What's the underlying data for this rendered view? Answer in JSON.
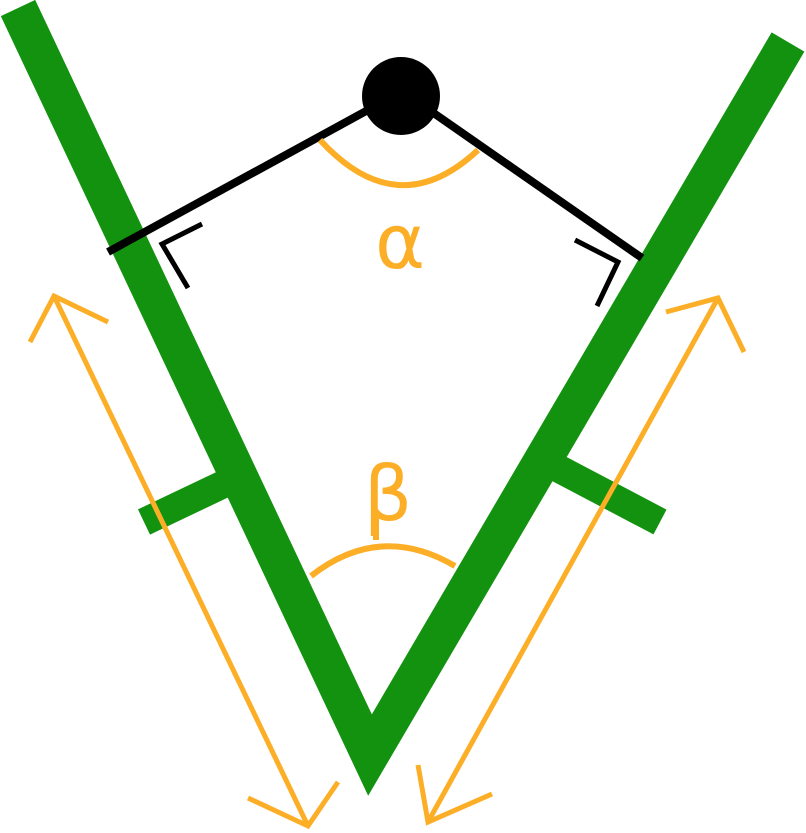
{
  "labels": {
    "alpha": "α",
    "beta": "β"
  },
  "colors": {
    "plate": "#13920f",
    "accent": "#fcae26",
    "ink": "#000000",
    "background": "#ffffff"
  }
}
